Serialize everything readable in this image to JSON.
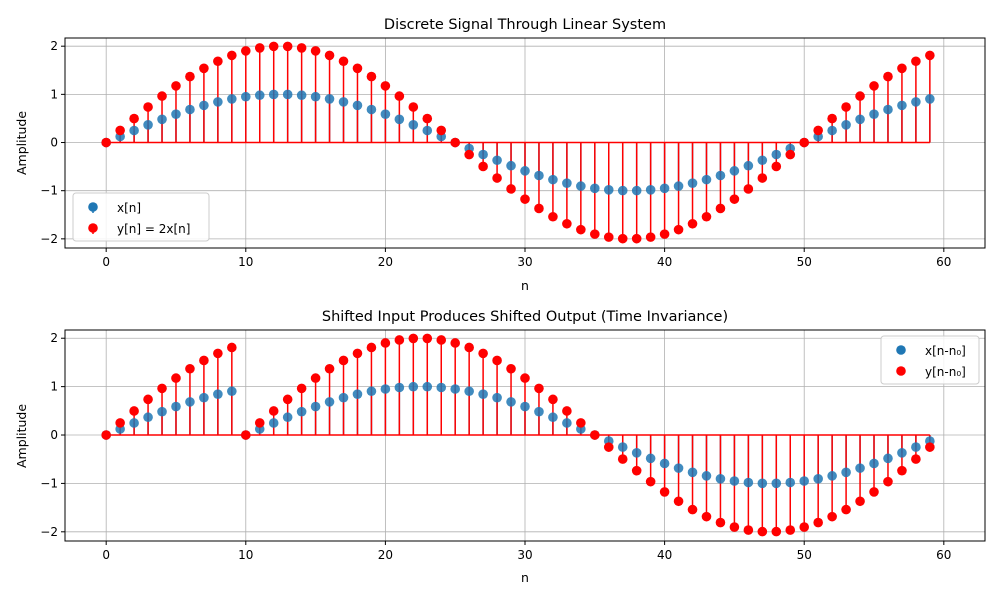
{
  "chart_data": [
    {
      "type": "stem",
      "title": "Discrete Signal Through Linear System",
      "xlabel": "n",
      "ylabel": "Amplitude",
      "xlim": [
        -2.95,
        62.95
      ],
      "ylim": [
        -2.19,
        2.17
      ],
      "xticks": [
        0,
        10,
        20,
        30,
        40,
        50,
        60
      ],
      "yticks": [
        -2,
        -1,
        0,
        1,
        2
      ],
      "grid": true,
      "legend_position": "lower-left",
      "n": [
        0,
        1,
        2,
        3,
        4,
        5,
        6,
        7,
        8,
        9,
        10,
        11,
        12,
        13,
        14,
        15,
        16,
        17,
        18,
        19,
        20,
        21,
        22,
        23,
        24,
        25,
        26,
        27,
        28,
        29,
        30,
        31,
        32,
        33,
        34,
        35,
        36,
        37,
        38,
        39,
        40,
        41,
        42,
        43,
        44,
        45,
        46,
        47,
        48,
        49,
        50,
        51,
        52,
        53,
        54,
        55,
        56,
        57,
        58,
        59
      ],
      "series": [
        {
          "name": "x[n]",
          "color": "#1f77b4",
          "values": [
            0,
            0.125,
            0.249,
            0.368,
            0.482,
            0.588,
            0.685,
            0.771,
            0.844,
            0.905,
            0.951,
            0.982,
            0.998,
            0.998,
            0.982,
            0.951,
            0.905,
            0.844,
            0.771,
            0.685,
            0.588,
            0.482,
            0.368,
            0.249,
            0.125,
            0,
            -0.125,
            -0.249,
            -0.368,
            -0.482,
            -0.588,
            -0.685,
            -0.771,
            -0.844,
            -0.905,
            -0.951,
            -0.982,
            -0.998,
            -0.998,
            -0.982,
            -0.951,
            -0.905,
            -0.844,
            -0.771,
            -0.685,
            -0.588,
            -0.482,
            -0.368,
            -0.249,
            -0.125,
            0,
            0.125,
            0.249,
            0.368,
            0.482,
            0.588,
            0.685,
            0.771,
            0.844,
            0.905
          ]
        },
        {
          "name": "y[n] = 2x[n]",
          "color": "#ff0000",
          "values": [
            0,
            0.251,
            0.497,
            0.737,
            0.964,
            1.176,
            1.369,
            1.541,
            1.687,
            1.809,
            1.902,
            1.964,
            1.996,
            1.996,
            1.964,
            1.902,
            1.809,
            1.687,
            1.541,
            1.369,
            1.176,
            0.964,
            0.737,
            0.497,
            0.251,
            0,
            -0.251,
            -0.497,
            -0.737,
            -0.964,
            -1.176,
            -1.369,
            -1.541,
            -1.687,
            -1.809,
            -1.902,
            -1.964,
            -1.996,
            -1.996,
            -1.964,
            -1.902,
            -1.809,
            -1.687,
            -1.541,
            -1.369,
            -1.176,
            -0.964,
            -0.737,
            -0.497,
            -0.251,
            0,
            0.251,
            0.497,
            0.737,
            0.964,
            1.176,
            1.369,
            1.541,
            1.687,
            1.809
          ]
        }
      ]
    },
    {
      "type": "stem",
      "title": "Shifted Input Produces Shifted Output (Time Invariance)",
      "xlabel": "n",
      "ylabel": "Amplitude",
      "xlim": [
        -2.95,
        62.95
      ],
      "ylim": [
        -2.19,
        2.17
      ],
      "xticks": [
        0,
        10,
        20,
        30,
        40,
        50,
        60
      ],
      "yticks": [
        -2,
        -1,
        0,
        1,
        2
      ],
      "grid": true,
      "legend_position": "upper-right",
      "n": [
        0,
        1,
        2,
        3,
        4,
        5,
        6,
        7,
        8,
        9,
        10,
        11,
        12,
        13,
        14,
        15,
        16,
        17,
        18,
        19,
        20,
        21,
        22,
        23,
        24,
        25,
        26,
        27,
        28,
        29,
        30,
        31,
        32,
        33,
        34,
        35,
        36,
        37,
        38,
        39,
        40,
        41,
        42,
        43,
        44,
        45,
        46,
        47,
        48,
        49,
        50,
        51,
        52,
        53,
        54,
        55,
        56,
        57,
        58,
        59
      ],
      "series": [
        {
          "name": "x[n-n₀]",
          "color": "#1f77b4",
          "values": [
            0,
            0.125,
            0.249,
            0.368,
            0.482,
            0.588,
            0.685,
            0.771,
            0.844,
            0.905,
            0,
            0.125,
            0.249,
            0.368,
            0.482,
            0.588,
            0.685,
            0.771,
            0.844,
            0.905,
            0.951,
            0.982,
            0.998,
            0.998,
            0.982,
            0.951,
            0.905,
            0.844,
            0.771,
            0.685,
            0.588,
            0.482,
            0.368,
            0.249,
            0.125,
            0,
            -0.125,
            -0.249,
            -0.368,
            -0.482,
            -0.588,
            -0.685,
            -0.771,
            -0.844,
            -0.905,
            -0.951,
            -0.982,
            -0.998,
            -0.998,
            -0.982,
            -0.951,
            -0.905,
            -0.844,
            -0.771,
            -0.685,
            -0.588,
            -0.482,
            -0.368,
            -0.249,
            -0.125
          ]
        },
        {
          "name": "y[n-n₀]",
          "color": "#ff0000",
          "values": [
            0,
            0.251,
            0.497,
            0.737,
            0.964,
            1.176,
            1.369,
            1.541,
            1.687,
            1.809,
            0,
            0.251,
            0.497,
            0.737,
            0.964,
            1.176,
            1.369,
            1.541,
            1.687,
            1.809,
            1.902,
            1.964,
            1.996,
            1.996,
            1.964,
            1.902,
            1.809,
            1.687,
            1.541,
            1.369,
            1.176,
            0.964,
            0.737,
            0.497,
            0.251,
            0,
            -0.251,
            -0.497,
            -0.737,
            -0.964,
            -1.176,
            -1.369,
            -1.541,
            -1.687,
            -1.809,
            -1.902,
            -1.964,
            -1.996,
            -1.996,
            -1.964,
            -1.902,
            -1.809,
            -1.687,
            -1.541,
            -1.369,
            -1.176,
            -0.964,
            -0.737,
            -0.497,
            -0.251
          ]
        }
      ]
    }
  ]
}
